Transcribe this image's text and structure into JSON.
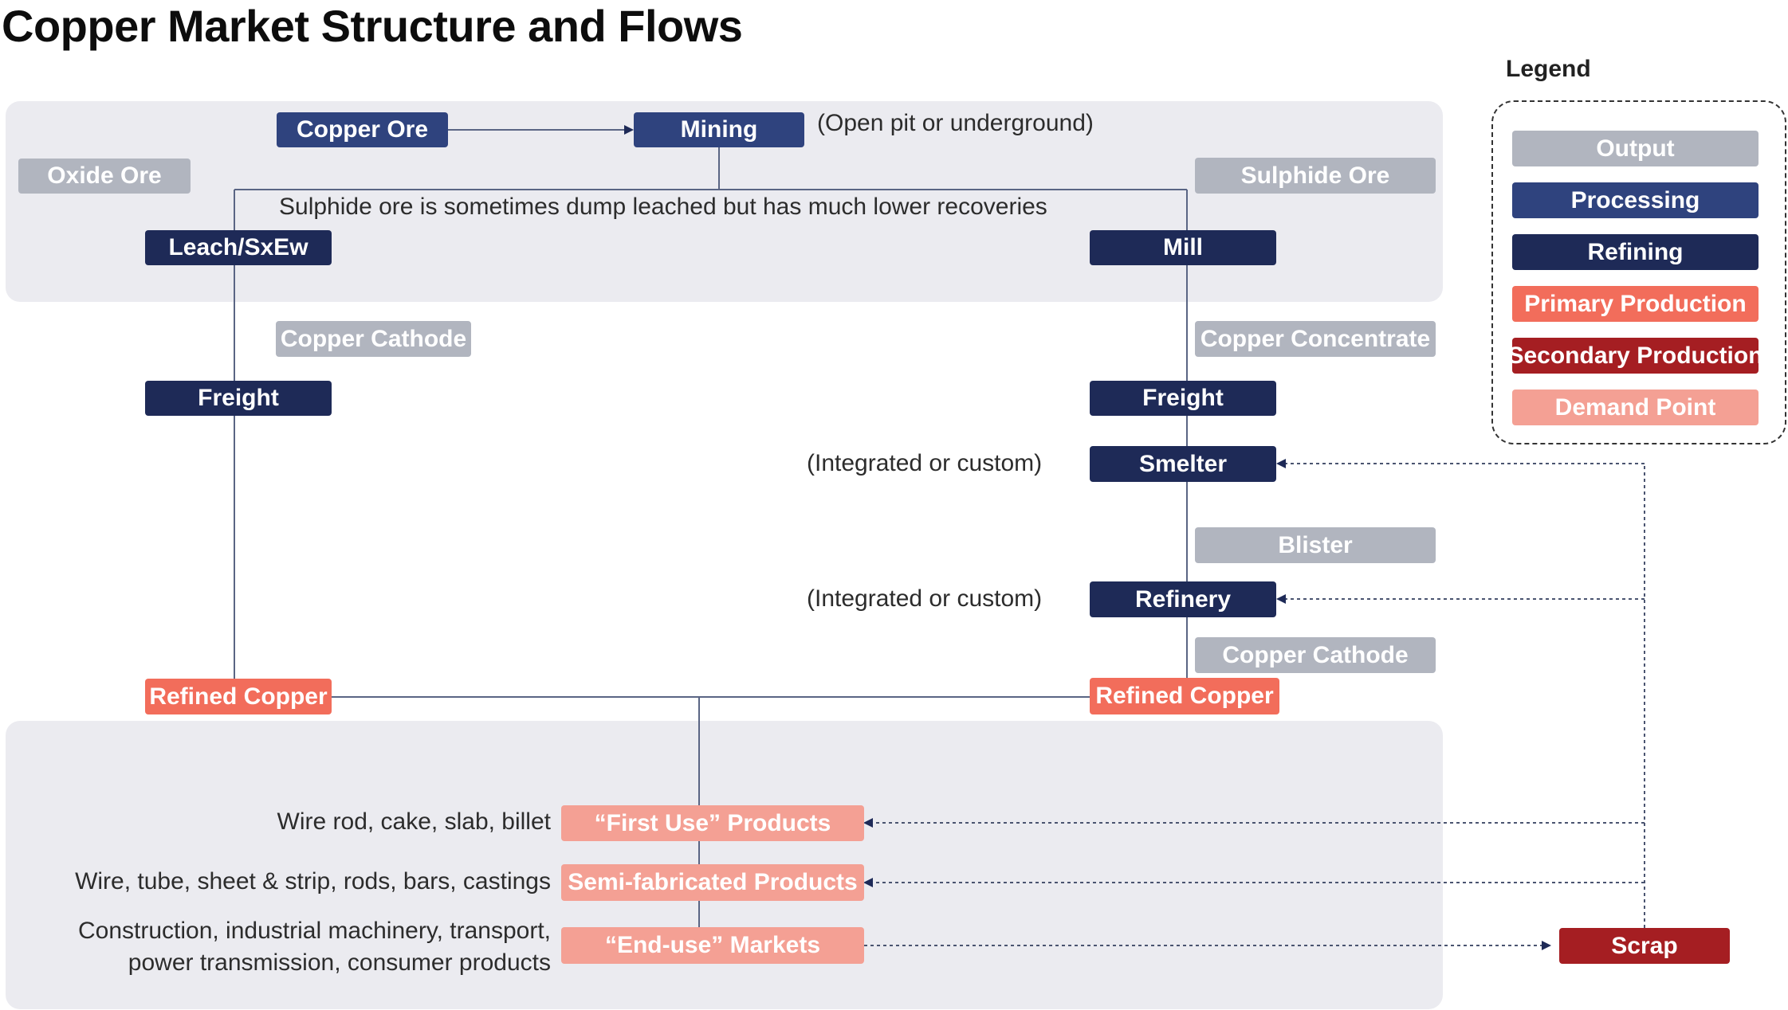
{
  "title": "Copper Market Structure and Flows",
  "nodes": {
    "copper_ore": "Copper Ore",
    "mining": "Mining",
    "oxide_ore": "Oxide Ore",
    "sulphide_ore": "Sulphide Ore",
    "leach_sxew": "Leach/SxEw",
    "mill": "Mill",
    "copper_cathode_left": "Copper Cathode",
    "copper_concentrate": "Copper Concentrate",
    "freight_left": "Freight",
    "freight_right": "Freight",
    "smelter": "Smelter",
    "blister": "Blister",
    "refinery": "Refinery",
    "copper_cathode_right": "Copper Cathode",
    "refined_copper_left": "Refined Copper",
    "refined_copper_right": "Refined Copper",
    "first_use": "“First Use” Products",
    "semi_fab": "Semi-fabricated Products",
    "end_use": "“End-use” Markets",
    "scrap": "Scrap"
  },
  "notes": {
    "mining_note": "(Open pit or underground)",
    "sulphide_note": "Sulphide ore is sometimes dump leached but has much lower recoveries",
    "smelter_note": "(Integrated or custom)",
    "refinery_note": "(Integrated or custom)",
    "first_use_note": "Wire rod, cake, slab, billet",
    "semi_fab_note": "Wire, tube, sheet & strip, rods, bars, castings",
    "end_use_note_1": "Construction, industrial machinery, transport,",
    "end_use_note_2": "power transmission, consumer products"
  },
  "legend": {
    "title": "Legend",
    "items": [
      {
        "label": "Output",
        "color": "#b1b5bf"
      },
      {
        "label": "Processing",
        "color": "#2f437e"
      },
      {
        "label": "Refining",
        "color": "#1e2a57"
      },
      {
        "label": "Primary Production",
        "color": "#f26d5b"
      },
      {
        "label": "Secondary Production",
        "color": "#a51e22"
      },
      {
        "label": "Demand Point",
        "color": "#f4a094"
      }
    ]
  }
}
